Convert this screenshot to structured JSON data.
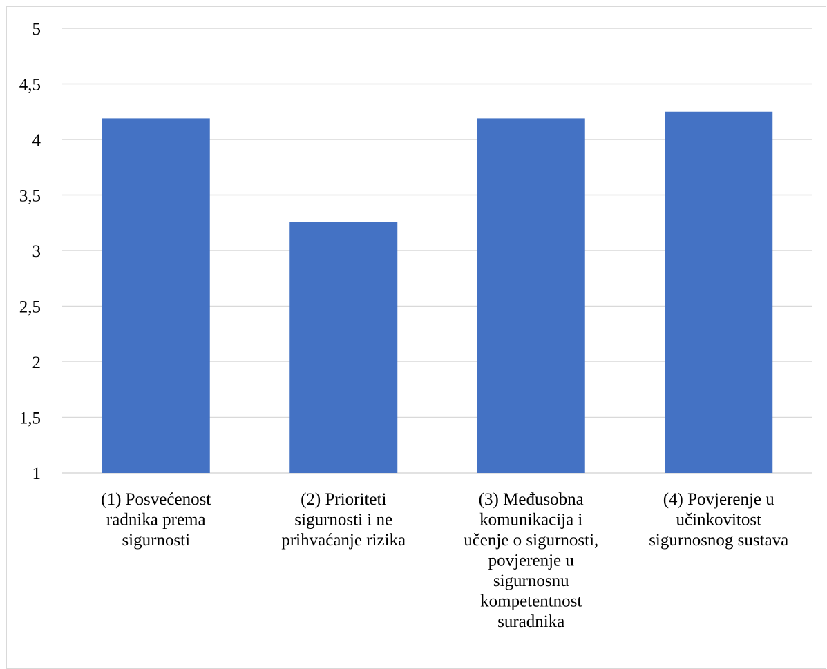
{
  "chart_data": {
    "type": "bar",
    "title": "",
    "xlabel": "",
    "ylabel": "",
    "ylim": [
      1,
      5
    ],
    "y_ticks": [
      "1",
      "1,5",
      "2",
      "2,5",
      "3",
      "3,5",
      "4",
      "4,5",
      "5"
    ],
    "y_tick_values": [
      1,
      1.5,
      2,
      2.5,
      3,
      3.5,
      4,
      4.5,
      5
    ],
    "grid": true,
    "legend": "none",
    "bar_color": "#4472c4",
    "grid_color": "#d9d9d9",
    "categories": [
      [
        "(1) Posvećenost",
        "radnika prema",
        "sigurnosti"
      ],
      [
        "(2) Prioriteti",
        "sigurnosti i ne",
        "prihvaćanje rizika"
      ],
      [
        "(3) Međusobna",
        "komunikacija i",
        "učenje o sigurnosti,",
        "povjerenje u",
        "sigurnosnu",
        "kompetentnost",
        "suradnika"
      ],
      [
        "(4) Povjerenje u",
        "učinkovitost",
        "sigurnosnog sustava"
      ]
    ],
    "values": [
      4.19,
      3.26,
      4.19,
      4.25
    ]
  }
}
